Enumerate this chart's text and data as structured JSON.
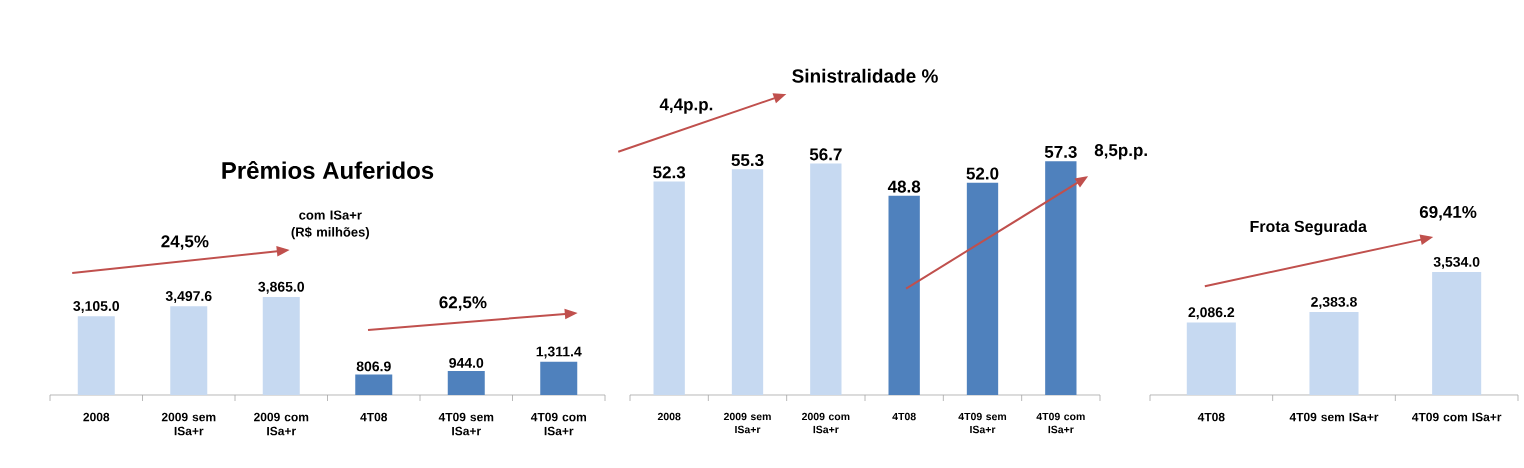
{
  "chart_data": [
    {
      "type": "bar",
      "title": "Prêmios Auferidos",
      "subtitle": "com ISa+r (R$ milhões)",
      "categories": [
        "2008",
        "2009 sem ISa+r",
        "2009 com ISa+r",
        "4T08",
        "4T09 sem ISa+r",
        "4T09 com ISa+r"
      ],
      "values": [
        3105.0,
        3497.6,
        3865.0,
        806.9,
        944.0,
        1311.4
      ],
      "colors": [
        "#c6d9f1",
        "#c6d9f1",
        "#c6d9f1",
        "#4f81bd",
        "#4f81bd",
        "#4f81bd"
      ],
      "value_labels": [
        "3,105.0",
        "3,497.6",
        "3,865.0",
        "806.9",
        "944.0",
        "1,311.4"
      ],
      "annotations": [
        "24,5%",
        "62,5%"
      ]
    },
    {
      "type": "bar",
      "title": "Sinistralidade %",
      "categories": [
        "2008",
        "2009 sem ISa+r",
        "2009 com ISa+r",
        "4T08",
        "4T09 sem ISa+r",
        "4T09 com ISa+r"
      ],
      "values": [
        52.3,
        55.3,
        56.7,
        48.8,
        52.0,
        57.3
      ],
      "colors": [
        "#c6d9f1",
        "#c6d9f1",
        "#c6d9f1",
        "#4f81bd",
        "#4f81bd",
        "#4f81bd"
      ],
      "value_labels": [
        "52.3",
        "55.3",
        "56.7",
        "48.8",
        "52.0",
        "57.3"
      ],
      "annotations": [
        "4,4p.p.",
        "8,5p.p."
      ]
    },
    {
      "type": "bar",
      "title": "Frota Segurada",
      "categories": [
        "4T08",
        "4T09 sem ISa+r",
        "4T09 com ISa+r"
      ],
      "values": [
        2086.2,
        2383.8,
        3534.0
      ],
      "colors": [
        "#c6d9f1",
        "#c6d9f1",
        "#c6d9f1"
      ],
      "value_labels": [
        "2,086.2",
        "2,383.8",
        "3,534.0"
      ],
      "annotations": [
        "69,41%"
      ]
    }
  ]
}
